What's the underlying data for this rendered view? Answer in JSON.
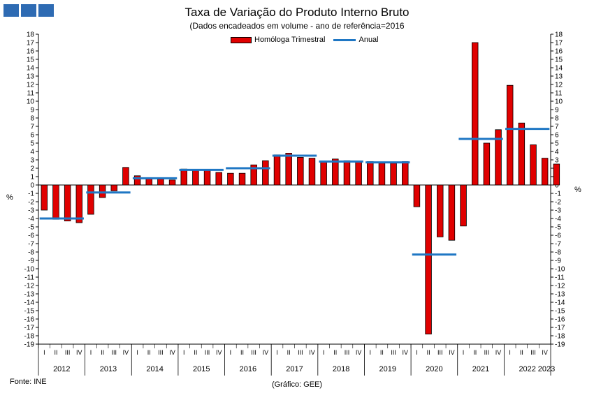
{
  "header": {
    "title": "Taxa de Variação do Produto Interno Bruto",
    "subtitle": "(Dados encadeados em volume  - ano de referência=2016"
  },
  "legend": {
    "bar_label": "Homóloga Trimestral",
    "line_label": "Anual"
  },
  "axis": {
    "unit_left": "%",
    "unit_right": "%"
  },
  "footer": {
    "source": "Fonte: INE",
    "credit": "(Gráfico: GEE)"
  },
  "colors": {
    "bar": "#e00000",
    "line": "#1f77c4",
    "logo": "#2e6bb3"
  },
  "chart_data": {
    "type": "bar",
    "ylim": [
      -19,
      18
    ],
    "quarter_labels": [
      "I",
      "II",
      "III",
      "IV"
    ],
    "years": [
      "2012",
      "2013",
      "2014",
      "2015",
      "2016",
      "2017",
      "2018",
      "2019",
      "2020",
      "2021",
      "2022",
      "2023"
    ],
    "series": [
      {
        "name": "Homóloga Trimestral",
        "values": [
          -3.0,
          -4.1,
          -4.3,
          -4.5,
          -3.5,
          -1.5,
          -0.7,
          2.1,
          1.1,
          0.8,
          0.7,
          0.6,
          1.9,
          1.8,
          1.8,
          1.5,
          1.4,
          1.4,
          2.4,
          2.9,
          3.6,
          3.8,
          3.3,
          3.2,
          2.8,
          3.1,
          2.9,
          2.8,
          2.8,
          2.6,
          2.6,
          2.8,
          -2.6,
          -17.8,
          -6.2,
          -6.6,
          -4.9,
          17.0,
          5.0,
          6.6,
          11.9,
          7.4,
          4.8,
          3.2,
          2.5
        ]
      },
      {
        "name": "Anual",
        "values": [
          -4.0,
          -0.9,
          0.8,
          1.8,
          2.0,
          3.5,
          2.8,
          2.7,
          -8.3,
          5.5,
          6.7
        ]
      }
    ]
  }
}
